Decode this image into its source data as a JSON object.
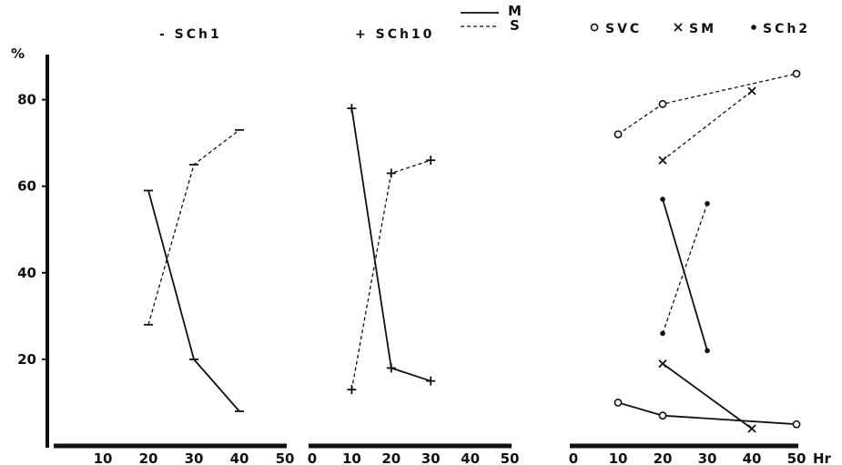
{
  "chart_data": [
    {
      "type": "line",
      "title": "- SCh1",
      "ylabel": "%",
      "xlabel": "",
      "xlim": [
        0,
        50
      ],
      "ylim": [
        0,
        90
      ],
      "xticks": [
        "10",
        "20",
        "30",
        "40",
        "50"
      ],
      "yticks": [
        "20",
        "40",
        "60",
        "80"
      ],
      "grid": false,
      "series": [
        {
          "name": "M",
          "style": "solid",
          "marker": "dash",
          "x": [
            20,
            30,
            40
          ],
          "y": [
            59,
            20,
            8
          ]
        },
        {
          "name": "S",
          "style": "dashed",
          "marker": "dash",
          "x": [
            20,
            30,
            40
          ],
          "y": [
            28,
            65,
            73
          ]
        }
      ]
    },
    {
      "type": "line",
      "title": "+ SCh10",
      "xlabel": "",
      "xlim": [
        0,
        50
      ],
      "ylim": [
        0,
        90
      ],
      "xticks": [
        "0",
        "10",
        "20",
        "30",
        "40",
        "50"
      ],
      "grid": false,
      "series": [
        {
          "name": "M",
          "style": "solid",
          "marker": "plus",
          "x": [
            10,
            20,
            30
          ],
          "y": [
            78,
            18,
            15
          ]
        },
        {
          "name": "S",
          "style": "dashed",
          "marker": "plus",
          "x": [
            10,
            20,
            30
          ],
          "y": [
            13,
            63,
            66
          ]
        }
      ]
    },
    {
      "type": "line",
      "title": "",
      "xlabel": "Hr",
      "xlim": [
        0,
        50
      ],
      "ylim": [
        0,
        90
      ],
      "xticks": [
        "0",
        "10",
        "20",
        "30",
        "40",
        "50"
      ],
      "grid": false,
      "series": [
        {
          "name": "SVC",
          "style": "dashed",
          "marker": "circle",
          "x": [
            10,
            20,
            50
          ],
          "y": [
            72,
            79,
            86
          ]
        },
        {
          "name": "SVC",
          "style": "solid",
          "marker": "circle",
          "x": [
            10,
            20,
            50
          ],
          "y": [
            10,
            7,
            5
          ]
        },
        {
          "name": "SM",
          "style": "dashed",
          "marker": "cross",
          "x": [
            20,
            40
          ],
          "y": [
            66,
            82
          ]
        },
        {
          "name": "SM",
          "style": "solid",
          "marker": "cross",
          "x": [
            20,
            40
          ],
          "y": [
            19,
            4
          ]
        },
        {
          "name": "SCh2",
          "style": "dashed",
          "marker": "dot",
          "x": [
            20,
            30
          ],
          "y": [
            26,
            56
          ]
        },
        {
          "name": "SCh2",
          "style": "solid",
          "marker": "dot",
          "x": [
            20,
            30
          ],
          "y": [
            57,
            22
          ]
        }
      ]
    }
  ],
  "line_key": [
    {
      "style": "solid",
      "label": "M"
    },
    {
      "style": "dashed",
      "label": "S"
    }
  ],
  "marker_legend": [
    {
      "marker": "circle",
      "label": "SVC"
    },
    {
      "marker": "cross",
      "label": "SM"
    },
    {
      "marker": "dot",
      "label": "SCh2"
    }
  ]
}
